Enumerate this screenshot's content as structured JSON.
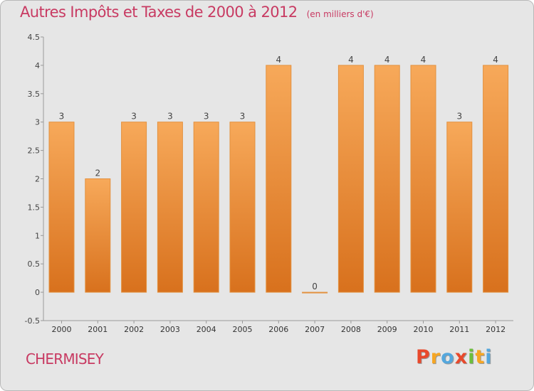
{
  "chart_data": {
    "type": "bar",
    "title": "Autres Impôts et Taxes de 2000 à 2012",
    "subtitle": "(en milliers d'€)",
    "categories": [
      "2000",
      "2001",
      "2002",
      "2003",
      "2004",
      "2005",
      "2006",
      "2007",
      "2008",
      "2009",
      "2010",
      "2011",
      "2012"
    ],
    "values": [
      3,
      2,
      3,
      3,
      3,
      3,
      4,
      0,
      4,
      4,
      4,
      3,
      4
    ],
    "data_labels": [
      "3",
      "2",
      "3",
      "3",
      "3",
      "3",
      "4",
      "0",
      "4",
      "4",
      "4",
      "3",
      "4"
    ],
    "ylim": [
      -0.5,
      4.5
    ],
    "yticks": [
      "-0.5",
      "0",
      "0.5",
      "1",
      "1.5",
      "2",
      "2.5",
      "3",
      "3.5",
      "4",
      "4.5"
    ],
    "grid": false,
    "bar_color_top": "#f7a95a",
    "bar_color_bottom": "#d8711d"
  },
  "footer": {
    "commune": "CHERMISEY",
    "logo_letters": [
      "P",
      "r",
      "o",
      "x",
      "i",
      "t",
      "i"
    ],
    "logo_colors": [
      "#e8492c",
      "#f6a623",
      "#54a7dd",
      "#e8492c",
      "#6cbf3c",
      "#f6a623",
      "#54a7dd"
    ]
  }
}
